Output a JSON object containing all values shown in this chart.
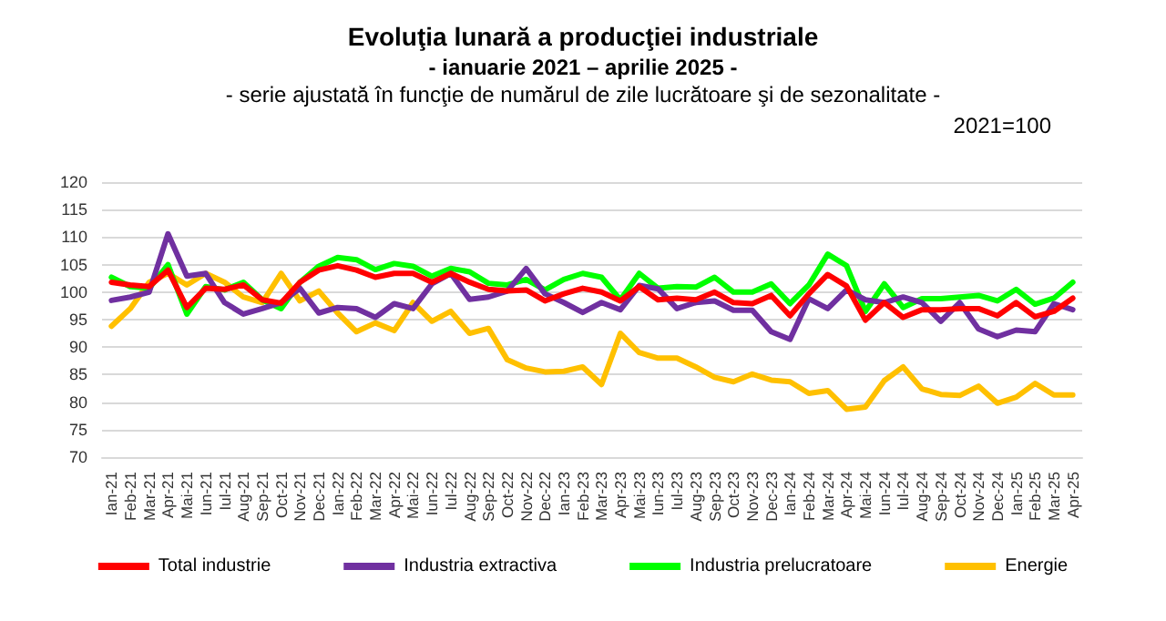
{
  "chart_data": {
    "type": "line",
    "title": "Evoluţia lunară a producţiei industriale",
    "subtitle": "- ianuarie 2021 – aprilie 2025 -",
    "annotations": [
      "- serie ajustată în funcţie de numărul de zile lucrătoare şi de sezonalitate -",
      "2021=100"
    ],
    "categories": [
      "Ian-21",
      "Feb-21",
      "Mar-21",
      "Apr-21",
      "Mai-21",
      "Iun-21",
      "Iul-21",
      "Aug-21",
      "Sep-21",
      "Oct-21",
      "Nov-21",
      "Dec-21",
      "Ian-22",
      "Feb-22",
      "Mar-22",
      "Apr-22",
      "Mai-22",
      "Iun-22",
      "Iul-22",
      "Aug-22",
      "Sep-22",
      "Oct-22",
      "Nov-22",
      "Dec-22",
      "Ian-23",
      "Feb-23",
      "Mar-23",
      "Apr-23",
      "Mai-23",
      "Iun-23",
      "Iul-23",
      "Aug-23",
      "Sep-23",
      "Oct-23",
      "Nov-23",
      "Dec-23",
      "Ian-24",
      "Feb-24",
      "Mar-24",
      "Apr-24",
      "Mai-24",
      "Iun-24",
      "Iul-24",
      "Aug-24",
      "Sep-24",
      "Oct-24",
      "Nov-24",
      "Dec-24",
      "Ian-25",
      "Feb-25",
      "Mar-25",
      "Apr-25"
    ],
    "series": [
      {
        "name": "Total industrie",
        "color": "#ff0000",
        "values": [
          101.8,
          101.3,
          101,
          104,
          97.2,
          100.7,
          100.5,
          101.3,
          98.6,
          98,
          101.8,
          104,
          104.8,
          104,
          102.7,
          103.4,
          103.4,
          101.8,
          103.4,
          101.8,
          100.5,
          100.2,
          100.4,
          98.4,
          99.7,
          100.7,
          100,
          98.4,
          101,
          98.6,
          98.9,
          98.6,
          100,
          98.1,
          97.9,
          99.4,
          95.7,
          99.7,
          103.2,
          101.1,
          94.9,
          98.1,
          95.4,
          96.8,
          96.8,
          97,
          97,
          95.7,
          98.1,
          95.5,
          96.5,
          98.9
        ]
      },
      {
        "name": "Industria extractiva",
        "color": "#7030a0",
        "values": [
          98.5,
          99.1,
          100,
          110.6,
          102.9,
          103.4,
          98.1,
          96,
          97,
          98.1,
          100.7,
          96.2,
          97.2,
          97,
          95.4,
          97.9,
          97,
          101.5,
          103.4,
          98.7,
          99.1,
          100.2,
          104.3,
          99.7,
          98.1,
          96.3,
          98.1,
          96.8,
          101.2,
          100.6,
          97,
          98.1,
          98.4,
          96.7,
          96.7,
          92.8,
          91.4,
          98.8,
          97,
          100.4,
          98.6,
          98.1,
          99.1,
          98.1,
          94.7,
          98.1,
          93.3,
          91.9,
          93.1,
          92.8,
          97.9,
          96.8
        ]
      },
      {
        "name": "Industria prelucratoare",
        "color": "#00ff00",
        "values": [
          102.7,
          101,
          100.7,
          105,
          96,
          101,
          100.4,
          101.8,
          98.6,
          97,
          101.8,
          104.7,
          106.3,
          105.9,
          104.1,
          105.2,
          104.7,
          102.9,
          104.3,
          103.7,
          101.6,
          101.3,
          102.3,
          100.4,
          102.3,
          103.4,
          102.7,
          98.6,
          103.4,
          100.7,
          101,
          100.9,
          102.7,
          100,
          100,
          101.5,
          97.9,
          101.3,
          106.9,
          104.8,
          96.5,
          101.5,
          97.2,
          98.8,
          98.8,
          99.1,
          99.4,
          98.4,
          100.5,
          97.8,
          98.9,
          101.8
        ]
      },
      {
        "name": "Energie",
        "color": "#ffc000",
        "values": [
          93.8,
          97,
          101.8,
          103.4,
          101.3,
          103.4,
          101.8,
          99.1,
          98.1,
          103.4,
          98.4,
          100.2,
          96.2,
          92.8,
          94.4,
          93,
          98.1,
          94.7,
          96.5,
          92.5,
          93.4,
          87.7,
          86.2,
          85.5,
          85.6,
          86.4,
          83.2,
          92.5,
          89,
          88,
          88,
          86.4,
          84.5,
          83.7,
          85.1,
          84,
          83.7,
          81.6,
          82.1,
          78.7,
          79.1,
          83.9,
          86.4,
          82.4,
          81.4,
          81.2,
          82.9,
          79.8,
          80.9,
          83.4,
          81.3,
          81.3
        ]
      }
    ],
    "ylim": [
      70,
      120
    ],
    "yticks": [
      70,
      75,
      80,
      85,
      90,
      95,
      100,
      105,
      110,
      115,
      120
    ],
    "grid": "y",
    "legend": "bottom",
    "marker": "none",
    "line_style": "solid"
  }
}
